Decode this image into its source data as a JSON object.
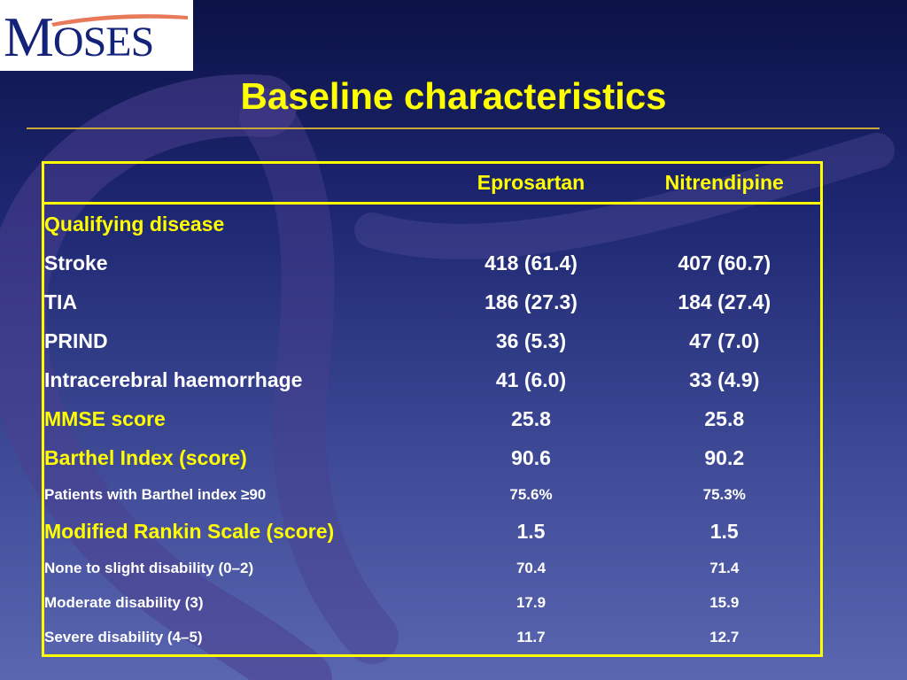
{
  "logo": {
    "text_big_initial": "M",
    "text_rest": "OSES",
    "colors": {
      "navy": "#14237a",
      "swoosh": "#e87a5a"
    }
  },
  "slide": {
    "title": "Baseline characteristics"
  },
  "table": {
    "columns": [
      "Eprosartan",
      "Nitrendipine"
    ],
    "rows": [
      {
        "label": "Qualifying disease",
        "type": "section",
        "size": "big",
        "eprosartan": "",
        "nitrendipine": ""
      },
      {
        "label": "Stroke",
        "type": "item",
        "size": "big",
        "eprosartan": "418 (61.4)",
        "nitrendipine": "407 (60.7)"
      },
      {
        "label": "TIA",
        "type": "item",
        "size": "big",
        "eprosartan": "186 (27.3)",
        "nitrendipine": "184 (27.4)"
      },
      {
        "label": "PRIND",
        "type": "item",
        "size": "big",
        "eprosartan": "36 (5.3)",
        "nitrendipine": "47 (7.0)"
      },
      {
        "label": "Intracerebral haemorrhage",
        "type": "item",
        "size": "big",
        "eprosartan": "41 (6.0)",
        "nitrendipine": "33 (4.9)"
      },
      {
        "label": "MMSE score",
        "type": "section",
        "size": "big",
        "eprosartan": "25.8",
        "nitrendipine": "25.8"
      },
      {
        "label": "Barthel Index (score)",
        "type": "section",
        "size": "big",
        "eprosartan": "90.6",
        "nitrendipine": "90.2"
      },
      {
        "label": "Patients with Barthel index ≥90",
        "type": "item",
        "size": "sm",
        "eprosartan": "75.6%",
        "nitrendipine": "75.3%"
      },
      {
        "label": "Modified Rankin Scale (score)",
        "type": "section",
        "size": "big",
        "eprosartan": "1.5",
        "nitrendipine": "1.5"
      },
      {
        "label": "None to slight disability (0–2)",
        "type": "item",
        "size": "sm",
        "eprosartan": "70.4",
        "nitrendipine": "71.4"
      },
      {
        "label": "Moderate disability (3)",
        "type": "item",
        "size": "sm",
        "eprosartan": "17.9",
        "nitrendipine": "15.9"
      },
      {
        "label": "Severe disability (4–5)",
        "type": "item",
        "size": "sm",
        "eprosartan": "11.7",
        "nitrendipine": "12.7"
      }
    ]
  },
  "colors": {
    "title": "#ffff00",
    "section_label": "#ffff00",
    "text": "#ffffff",
    "border": "#ffff00",
    "rule": "#c9a53a"
  }
}
